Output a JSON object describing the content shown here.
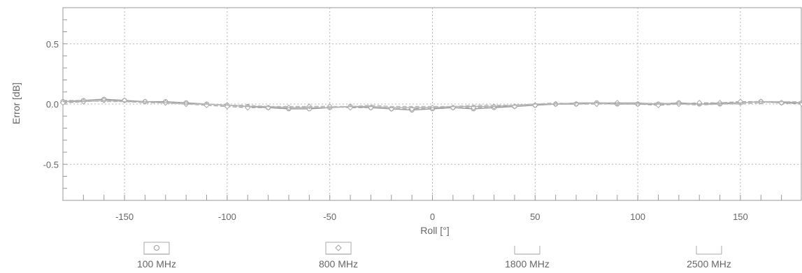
{
  "chart_data": {
    "type": "line",
    "xlabel": "Roll [°]",
    "ylabel": "Error [dB]",
    "xlim": [
      -180,
      180
    ],
    "ylim": [
      -0.8,
      0.8
    ],
    "x_ticks": [
      -150,
      -100,
      -50,
      0,
      50,
      100,
      150
    ],
    "y_ticks": [
      0.5,
      0.0,
      -0.5
    ],
    "x_tick_labels": [
      "-150",
      "-100",
      "-50",
      "0",
      "50",
      "100",
      "150"
    ],
    "y_tick_labels": [
      "0.5",
      "0.0",
      "-0.5"
    ],
    "grid": true,
    "legend_position": "bottom",
    "x": [
      -180,
      -170,
      -160,
      -150,
      -140,
      -130,
      -120,
      -110,
      -100,
      -90,
      -80,
      -70,
      -60,
      -50,
      -40,
      -30,
      -20,
      -10,
      0,
      10,
      20,
      30,
      40,
      50,
      60,
      70,
      80,
      90,
      100,
      110,
      120,
      130,
      140,
      150,
      160,
      170,
      180
    ],
    "series": [
      {
        "name": "100 MHz",
        "marker": "circle",
        "color": "#9a9a9a",
        "values": [
          0.02,
          0.03,
          0.04,
          0.03,
          0.02,
          0.02,
          0.01,
          0.0,
          -0.01,
          -0.02,
          -0.03,
          -0.04,
          -0.04,
          -0.03,
          -0.02,
          -0.03,
          -0.04,
          -0.05,
          -0.04,
          -0.03,
          -0.04,
          -0.03,
          -0.02,
          -0.01,
          0.0,
          0.0,
          0.01,
          0.0,
          0.0,
          0.0,
          0.01,
          0.0,
          0.0,
          0.01,
          0.02,
          0.01,
          0.01
        ]
      },
      {
        "name": "800 MHz",
        "marker": "diamond",
        "color": "#a5a5a5",
        "values": [
          0.01,
          0.02,
          0.03,
          0.03,
          0.02,
          0.01,
          0.0,
          -0.01,
          -0.02,
          -0.03,
          -0.03,
          -0.03,
          -0.02,
          -0.02,
          -0.03,
          -0.03,
          -0.04,
          -0.04,
          -0.03,
          -0.03,
          -0.03,
          -0.02,
          -0.02,
          -0.01,
          0.0,
          0.0,
          0.0,
          0.01,
          0.0,
          -0.01,
          0.0,
          0.01,
          0.01,
          0.02,
          0.02,
          0.01,
          0.0
        ]
      },
      {
        "name": "1800 MHz",
        "marker": "none",
        "color": "#b0b0b0",
        "values": [
          0.02,
          0.02,
          0.03,
          0.02,
          0.02,
          0.01,
          0.0,
          0.0,
          -0.01,
          -0.02,
          -0.02,
          -0.03,
          -0.03,
          -0.03,
          -0.02,
          -0.02,
          -0.03,
          -0.03,
          -0.03,
          -0.02,
          -0.02,
          -0.02,
          -0.01,
          0.0,
          0.0,
          0.01,
          0.01,
          0.01,
          0.01,
          0.0,
          0.0,
          0.0,
          0.01,
          0.01,
          0.02,
          0.02,
          0.01
        ]
      },
      {
        "name": "2500 MHz",
        "marker": "none",
        "color": "#bbbbbb",
        "values": [
          0.03,
          0.03,
          0.02,
          0.02,
          0.01,
          0.01,
          0.0,
          0.0,
          -0.01,
          -0.01,
          -0.02,
          -0.02,
          -0.02,
          -0.02,
          -0.02,
          -0.01,
          -0.02,
          -0.02,
          -0.02,
          -0.02,
          -0.01,
          -0.01,
          -0.01,
          0.0,
          0.01,
          0.0,
          0.0,
          0.0,
          0.0,
          0.01,
          0.0,
          -0.01,
          0.0,
          0.0,
          0.01,
          0.02,
          0.02
        ]
      }
    ]
  }
}
